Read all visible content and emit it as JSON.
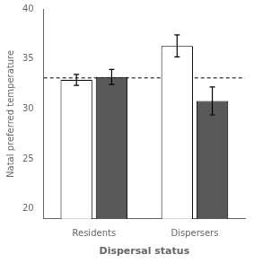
{
  "chart_data": {
    "type": "bar",
    "categories": [
      "Residents",
      "Dispersers"
    ],
    "series": [
      {
        "color": "#ffffff",
        "values": [
          32.9,
          36.3
        ],
        "errors": [
          0.55,
          1.1
        ]
      },
      {
        "color": "#595959",
        "values": [
          33.2,
          30.8
        ],
        "errors": [
          0.75,
          1.4
        ]
      }
    ],
    "reference_line": 33.1,
    "xlabel": "Dispersal status",
    "ylabel": "Natal preferred temperature",
    "ylim": [
      19,
      40
    ],
    "yticks": [
      20,
      25,
      30,
      35,
      40
    ],
    "grid": false
  }
}
